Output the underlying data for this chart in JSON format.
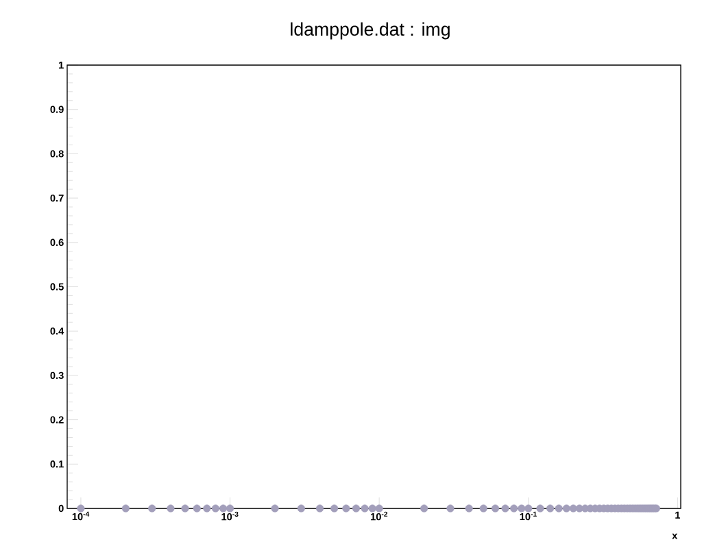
{
  "chart_data": {
    "type": "scatter",
    "title": "ldamppole.dat : img",
    "xlabel": "x",
    "log": "x",
    "marker": "circle",
    "color": "#a39fbb",
    "x": [
      0.0001,
      0.0002,
      0.0003,
      0.0004,
      0.0005,
      0.0006,
      0.0007,
      0.0008,
      0.0009,
      0.001,
      0.002,
      0.003,
      0.004,
      0.005,
      0.006,
      0.007,
      0.008,
      0.009,
      0.01,
      0.02,
      0.03,
      0.04,
      0.05,
      0.06,
      0.07,
      0.08,
      0.09,
      0.1,
      0.12,
      0.14,
      0.16,
      0.18,
      0.2,
      0.22,
      0.24,
      0.26,
      0.28,
      0.3,
      0.32,
      0.34,
      0.36,
      0.38,
      0.4,
      0.42,
      0.44,
      0.46,
      0.48,
      0.5,
      0.52,
      0.54,
      0.56,
      0.58,
      0.6,
      0.62,
      0.64,
      0.66,
      0.68,
      0.7,
      0.72
    ],
    "values": [
      0,
      0,
      0,
      0,
      0,
      0,
      0,
      0,
      0,
      0,
      0,
      0,
      0,
      0,
      0,
      0,
      0,
      0,
      0,
      0,
      0,
      0,
      0,
      0,
      0,
      0,
      0,
      0,
      0,
      0,
      0,
      0,
      0,
      0,
      0,
      0,
      0,
      0,
      0,
      0,
      0,
      0,
      0,
      0,
      0,
      0,
      0,
      0,
      0,
      0,
      0,
      0,
      0,
      0,
      0,
      0,
      0,
      0,
      0
    ],
    "xlim": [
      8.1e-05,
      1.05
    ],
    "ylim": [
      0,
      1
    ],
    "xticks": [
      {
        "value": 0.0001,
        "label": "10$^{-4}$"
      },
      {
        "value": 0.001,
        "label": "10$^{-3}$"
      },
      {
        "value": 0.01,
        "label": "10$^{-2}$"
      },
      {
        "value": 0.1,
        "label": "10$^{-1}$"
      },
      {
        "value": 1,
        "label": "1"
      }
    ],
    "yticks": [
      0,
      0.1,
      0.2,
      0.3,
      0.4,
      0.5,
      0.6,
      0.7,
      0.8,
      0.9,
      1
    ]
  }
}
